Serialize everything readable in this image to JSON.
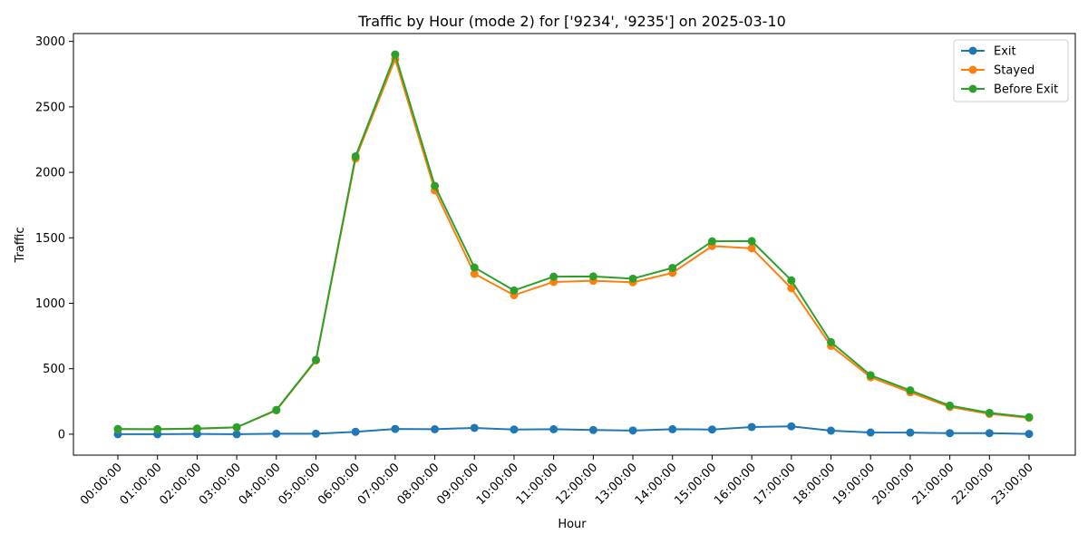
{
  "chart_data": {
    "type": "line",
    "title": "Traffic by Hour (mode 2) for ['9234', '9235'] on 2025-03-10",
    "xlabel": "Hour",
    "ylabel": "Traffic",
    "ylim": [
      -160,
      3060
    ],
    "yticks": [
      0,
      500,
      1000,
      1500,
      2000,
      2500,
      3000
    ],
    "grid": false,
    "legend_position": "top-right",
    "categories": [
      "00:00:00",
      "01:00:00",
      "02:00:00",
      "03:00:00",
      "04:00:00",
      "05:00:00",
      "06:00:00",
      "07:00:00",
      "08:00:00",
      "09:00:00",
      "10:00:00",
      "11:00:00",
      "12:00:00",
      "13:00:00",
      "14:00:00",
      "15:00:00",
      "16:00:00",
      "17:00:00",
      "18:00:00",
      "19:00:00",
      "20:00:00",
      "21:00:00",
      "22:00:00",
      "23:00:00"
    ],
    "series": [
      {
        "name": "Exit",
        "color": "#1f77b4",
        "values": [
          0,
          0,
          2,
          0,
          4,
          4,
          18,
          40,
          38,
          48,
          36,
          38,
          32,
          28,
          38,
          36,
          55,
          60,
          27,
          13,
          12,
          8,
          8,
          2
        ]
      },
      {
        "name": "Stayed",
        "color": "#ff7f0e",
        "values": [
          38,
          38,
          42,
          52,
          182,
          563,
          2105,
          2865,
          1862,
          1225,
          1062,
          1163,
          1172,
          1160,
          1232,
          1437,
          1420,
          1115,
          675,
          435,
          320,
          208,
          155,
          125
        ]
      },
      {
        "name": "Before Exit",
        "color": "#2ca02c",
        "values": [
          40,
          38,
          43,
          53,
          185,
          568,
          2122,
          2900,
          1897,
          1273,
          1098,
          1203,
          1205,
          1188,
          1270,
          1473,
          1475,
          1175,
          703,
          450,
          335,
          218,
          163,
          130
        ]
      }
    ]
  }
}
